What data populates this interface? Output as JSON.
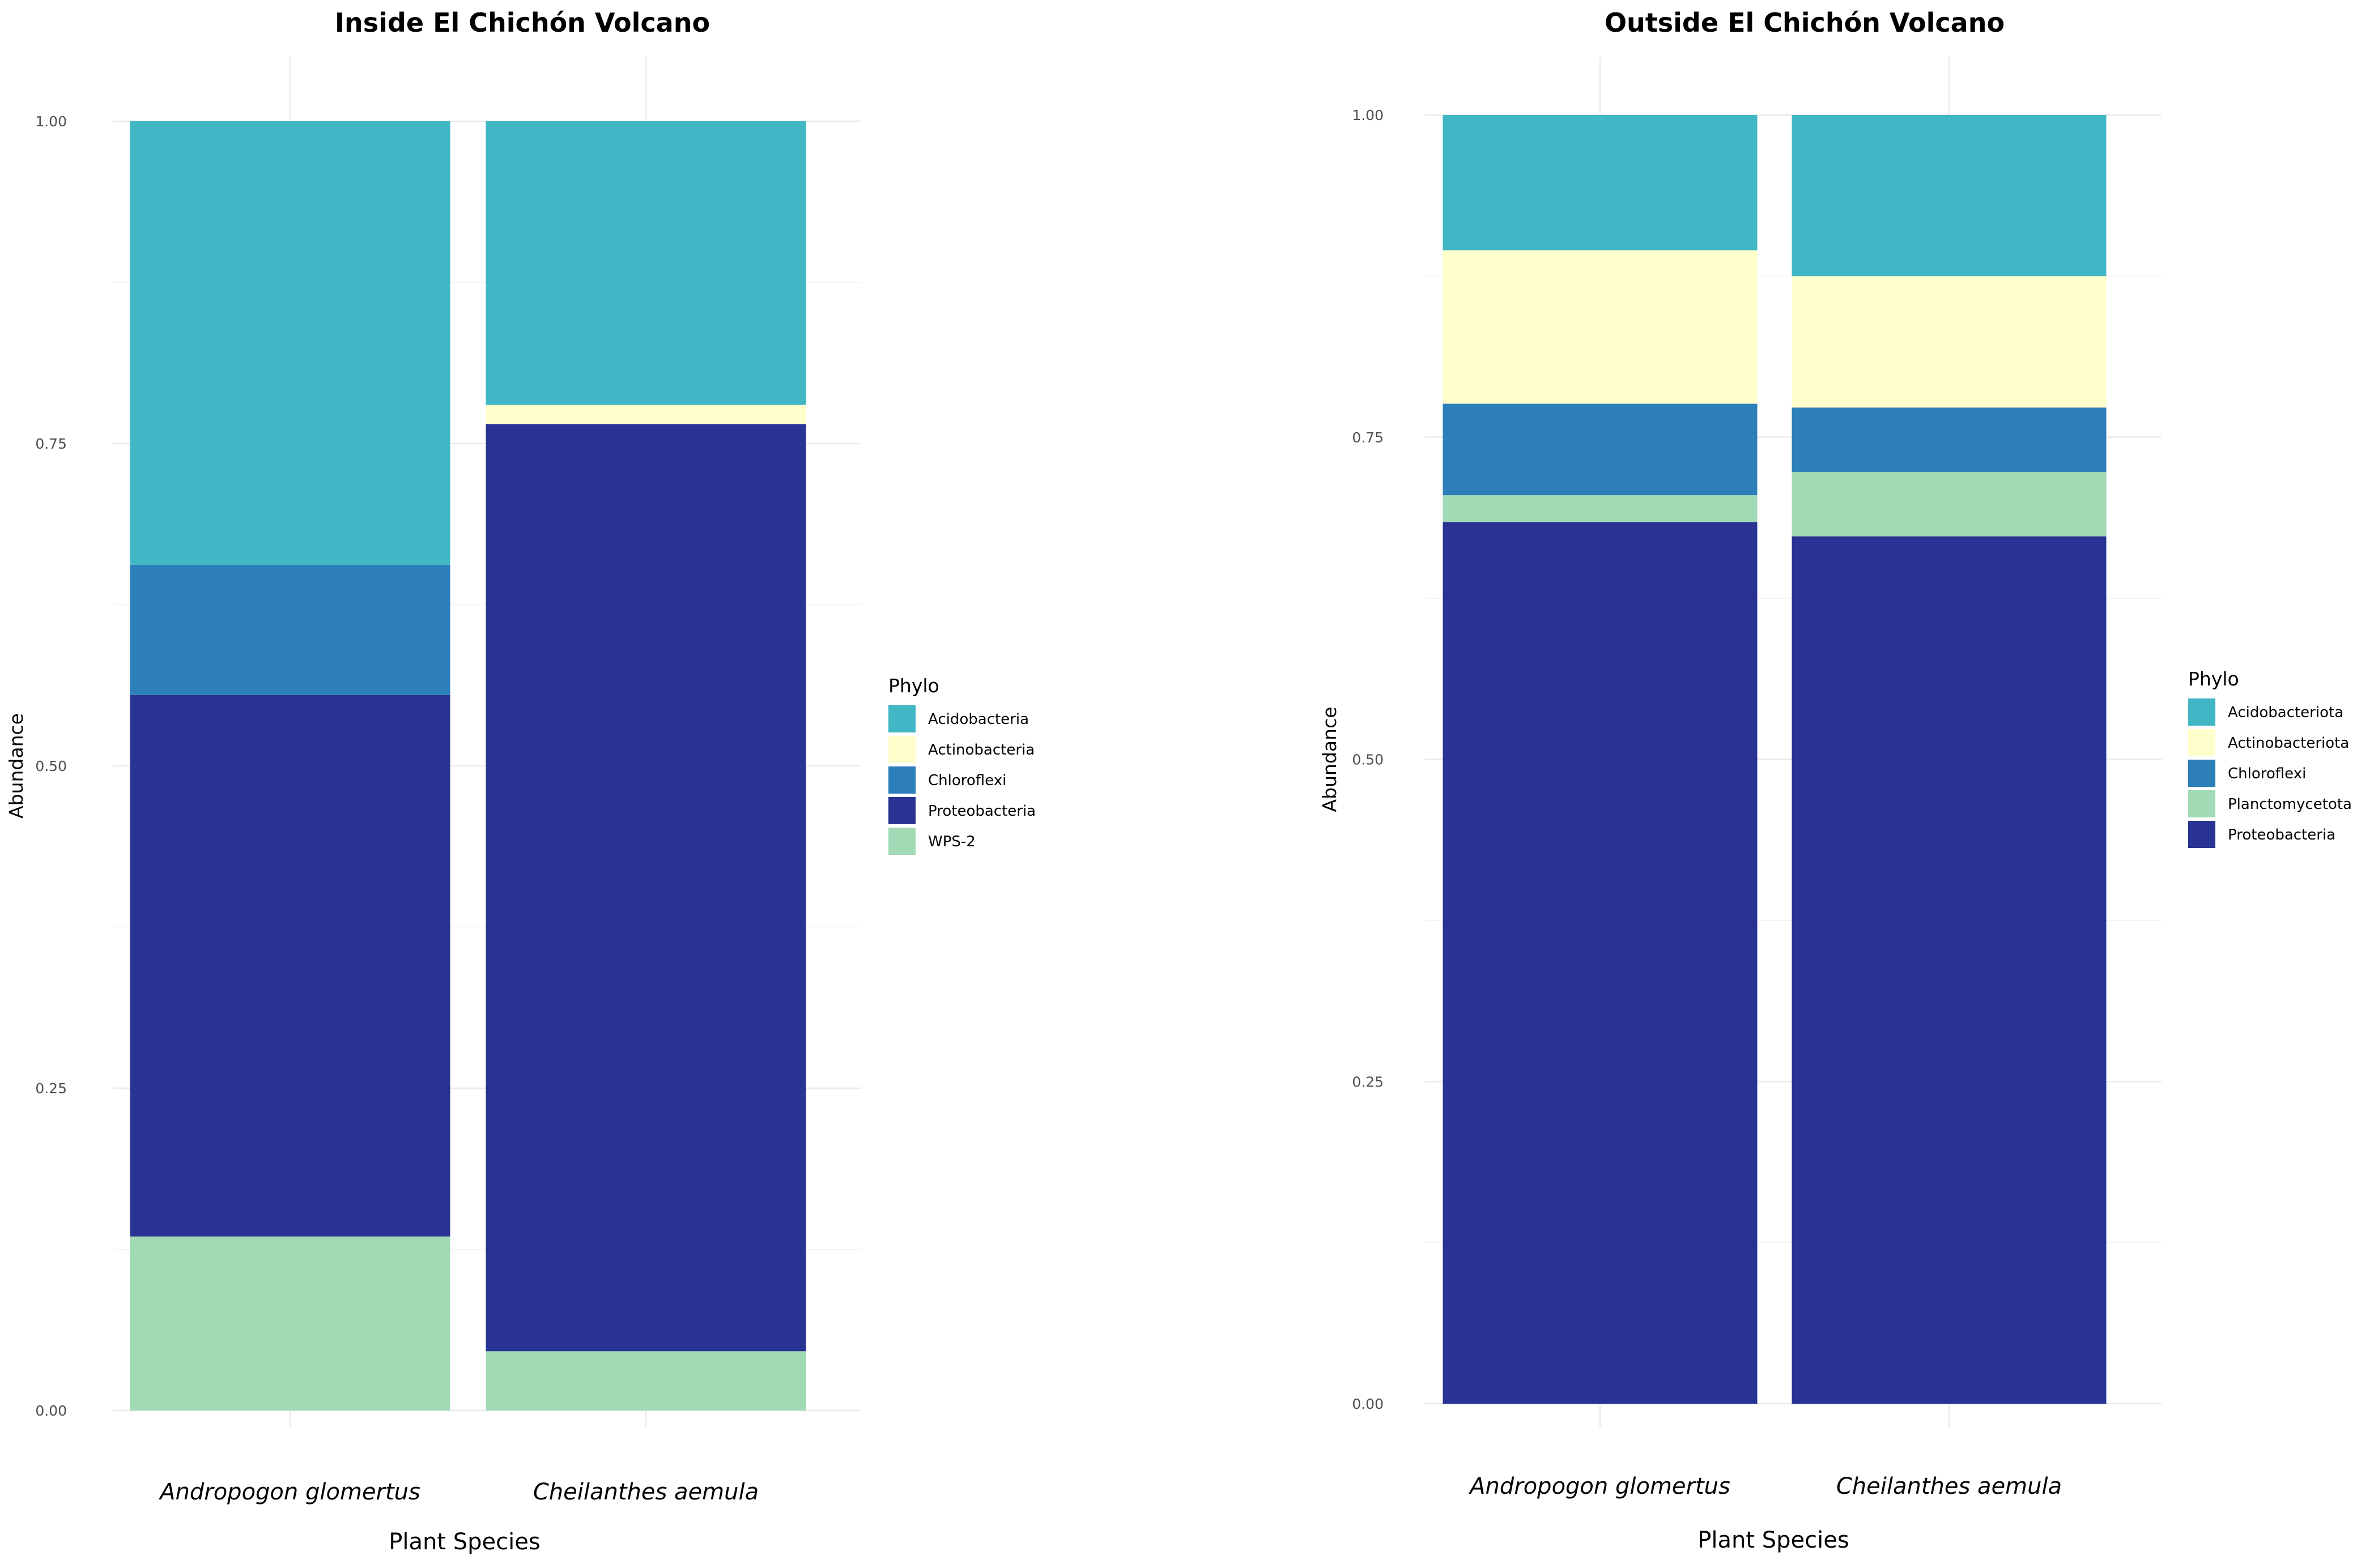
{
  "chart_data": [
    {
      "type": "bar",
      "stacked": true,
      "title": "Inside  El Chichón Volcano",
      "xlabel": "Plant Species",
      "ylabel": "Abundance",
      "ylim": [
        0,
        1
      ],
      "yticks": [
        "0.00",
        "0.25",
        "0.50",
        "0.75",
        "1.00"
      ],
      "categories": [
        "Andropogon  glomertus",
        "Cheilanthes aemula"
      ],
      "legend_title": "Phylo",
      "legend_position": "right",
      "series": [
        {
          "name": "Acidobacteria",
          "color": "#41b6c4",
          "values": [
            0.344,
            0.22
          ]
        },
        {
          "name": "Actinobacteria",
          "color": "#ffffcc",
          "values": [
            0.0,
            0.015
          ]
        },
        {
          "name": "Chloroflexi",
          "color": "#2c7fb8",
          "values": [
            0.101,
            0.0
          ]
        },
        {
          "name": "Proteobacteria",
          "color": "#283393",
          "values": [
            0.42,
            0.719
          ]
        },
        {
          "name": "WPS-2",
          "color": "#a1dab4",
          "values": [
            0.135,
            0.046
          ]
        }
      ]
    },
    {
      "type": "bar",
      "stacked": true,
      "title": "Outside  El Chichón Volcano",
      "xlabel": "Plant Species",
      "ylabel": "Abundance",
      "ylim": [
        0,
        1
      ],
      "yticks": [
        "0.00",
        "0.25",
        "0.50",
        "0.75",
        "1.00"
      ],
      "categories": [
        "Andropogon  glomertus",
        "Cheilanthes aemula"
      ],
      "legend_title": "Phylo",
      "legend_position": "right",
      "series": [
        {
          "name": "Acidobacteriota",
          "color": "#41b6c4",
          "values": [
            0.105,
            0.125
          ]
        },
        {
          "name": "Actinobacteriota",
          "color": "#ffffcc",
          "values": [
            0.119,
            0.102
          ]
        },
        {
          "name": "Chloroflexi",
          "color": "#2c7fb8",
          "values": [
            0.071,
            0.05
          ]
        },
        {
          "name": "Planctomycetota",
          "color": "#a1dab4",
          "values": [
            0.021,
            0.05
          ]
        },
        {
          "name": "Proteobacteria",
          "color": "#283393",
          "values": [
            0.684,
            0.673
          ]
        }
      ]
    }
  ]
}
